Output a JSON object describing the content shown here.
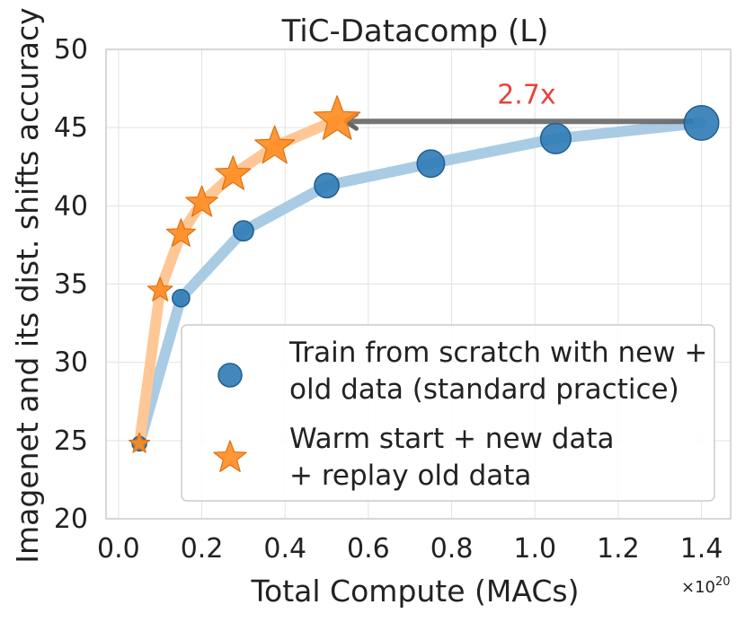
{
  "chart_data": {
    "type": "line",
    "title": "TiC-Datacomp (L)",
    "xlabel": "Total Compute (MACs)",
    "ylabel": "Imagenet and its dist. shifts accuracy",
    "x_scale_label": "×10",
    "x_scale_exponent": "20",
    "xlim": [
      -0.03,
      1.47
    ],
    "ylim": [
      20,
      50
    ],
    "xticks": [
      "0.0",
      "0.2",
      "0.4",
      "0.6",
      "0.8",
      "1.0",
      "1.2",
      "1.4"
    ],
    "yticks": [
      "20",
      "25",
      "30",
      "35",
      "40",
      "45",
      "50"
    ],
    "xtick_values": [
      0.0,
      0.2,
      0.4,
      0.6,
      0.8,
      1.0,
      1.2,
      1.4
    ],
    "ytick_values": [
      20,
      25,
      30,
      35,
      40,
      45,
      50
    ],
    "grid": true,
    "legend_position": "lower-right",
    "series": [
      {
        "name": "Train from scratch with new + old data (standard practice)",
        "legend_lines": [
          "Train from scratch with new +",
          "old data (standard practice)"
        ],
        "marker": "circle",
        "color": "#2f7bb6",
        "line_color": "#a9cbe4",
        "x": [
          0.05,
          0.15,
          0.3,
          0.5,
          0.75,
          1.05,
          1.4
        ],
        "y": [
          24.8,
          34.1,
          38.4,
          41.3,
          42.7,
          44.3,
          45.3
        ],
        "marker_scale": [
          0.5,
          0.6,
          0.7,
          0.85,
          0.95,
          1.05,
          1.2
        ]
      },
      {
        "name": "Warm start + new data + replay old data",
        "legend_lines": [
          "Warm start + new data",
          "+ replay old data"
        ],
        "marker": "star",
        "color": "#ff8c21",
        "line_color": "#ffc795",
        "x": [
          0.05,
          0.1,
          0.15,
          0.2,
          0.275,
          0.375,
          0.525
        ],
        "y": [
          24.8,
          34.6,
          38.2,
          40.2,
          42.0,
          43.8,
          45.5
        ],
        "marker_scale": [
          0.5,
          0.6,
          0.7,
          0.78,
          0.86,
          0.96,
          1.12
        ]
      }
    ],
    "annotation": {
      "text": "2.7x",
      "color": "#e8423d",
      "arrow_color": "#666666",
      "arrow_from": [
        1.38,
        45.4
      ],
      "arrow_to": [
        0.545,
        45.4
      ],
      "text_at": [
        0.98,
        46.3
      ]
    }
  }
}
